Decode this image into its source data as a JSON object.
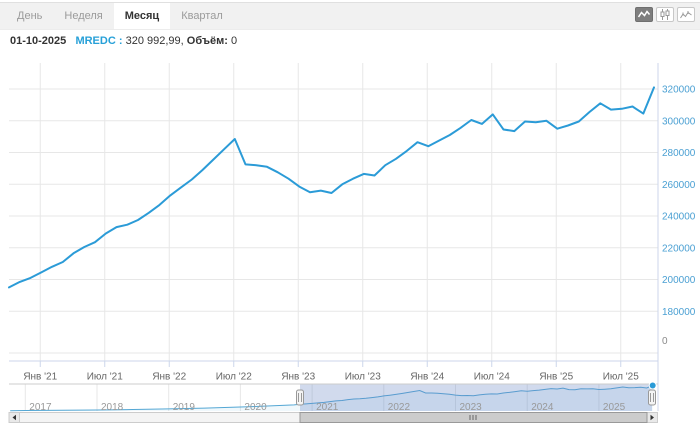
{
  "tabs": {
    "items": [
      {
        "label": "День",
        "active": false
      },
      {
        "label": "Неделя",
        "active": false
      },
      {
        "label": "Месяц",
        "active": true
      },
      {
        "label": "Квартал",
        "active": false
      }
    ]
  },
  "legend": {
    "date": "01-10-2025",
    "series": "MREDC",
    "sep": " : ",
    "price": "320 992,99,",
    "volume_label": "Объём:",
    "volume": "0"
  },
  "chart_type_buttons": [
    {
      "name": "line-chart",
      "active": true
    },
    {
      "name": "candlestick-chart",
      "active": false
    },
    {
      "name": "ohlc-chart",
      "active": false
    }
  ],
  "colors": {
    "line": "#2b9bd7",
    "nav_line": "#54a7d4",
    "nav_fill": "rgba(43,155,215,0.07)",
    "nav_mask": "rgba(102,133,194,0.3)",
    "grid": "#e7e7e7",
    "axis": "#ccd6eb",
    "y_label": "#4ba0d3",
    "x_label": "#666666",
    "year_label": "#999999"
  },
  "chart_data": {
    "type": "line",
    "series_name": "MREDC",
    "x": [
      "2020-10",
      "2020-11",
      "2020-12",
      "2021-01",
      "2021-02",
      "2021-03",
      "2021-04",
      "2021-05",
      "2021-06",
      "2021-07",
      "2021-08",
      "2021-09",
      "2021-10",
      "2021-11",
      "2021-12",
      "2022-01",
      "2022-02",
      "2022-03",
      "2022-04",
      "2022-05",
      "2022-06",
      "2022-07",
      "2022-08",
      "2022-09",
      "2022-10",
      "2022-11",
      "2022-12",
      "2023-01",
      "2023-02",
      "2023-03",
      "2023-04",
      "2023-05",
      "2023-06",
      "2023-07",
      "2023-08",
      "2023-09",
      "2023-10",
      "2023-11",
      "2023-12",
      "2024-01",
      "2024-02",
      "2024-03",
      "2024-04",
      "2024-05",
      "2024-06",
      "2024-07",
      "2024-08",
      "2024-09",
      "2024-10",
      "2024-11",
      "2024-12",
      "2025-01",
      "2025-02",
      "2025-03",
      "2025-04",
      "2025-05",
      "2025-06",
      "2025-07",
      "2025-08",
      "2025-09",
      "2025-10"
    ],
    "values": [
      195000,
      198500,
      201000,
      204500,
      208000,
      211000,
      216500,
      220500,
      223500,
      229000,
      233000,
      234500,
      237500,
      242000,
      247000,
      253000,
      258000,
      263000,
      269000,
      275500,
      282000,
      288500,
      272500,
      272000,
      271000,
      267500,
      263500,
      258500,
      255000,
      256000,
      254500,
      260000,
      263500,
      266500,
      265500,
      272000,
      276000,
      281000,
      286500,
      284000,
      287500,
      291000,
      295500,
      300500,
      298000,
      304000,
      294500,
      293500,
      299500,
      299000,
      300000,
      295000,
      297000,
      299500,
      305500,
      311000,
      307000,
      307500,
      309000,
      304500,
      320993
    ],
    "last_value": 320992.99,
    "yticks": [
      320000,
      300000,
      280000,
      260000,
      240000,
      220000,
      200000,
      180000
    ],
    "volume_axis_label": "0",
    "xtick_labels": [
      "Янв '21",
      "Июл '21",
      "Янв '22",
      "Июл '22",
      "Янв '23",
      "Июл '23",
      "Янв '24",
      "Июл '24",
      "Янв '25",
      "Июл '25"
    ],
    "ylim": [
      175000,
      328000
    ],
    "grid": true,
    "legend_position": "top-left"
  },
  "navigator": {
    "year_labels": [
      "2017",
      "2018",
      "2019",
      "2020",
      "2021",
      "2022",
      "2023",
      "2024",
      "2025"
    ],
    "prefix_points": [
      [
        2016.79,
        157000
      ],
      [
        2017.0,
        158000
      ],
      [
        2017.5,
        159500
      ],
      [
        2018.0,
        161500
      ],
      [
        2018.5,
        164500
      ],
      [
        2019.0,
        168500
      ],
      [
        2019.5,
        174000
      ],
      [
        2020.0,
        181000
      ],
      [
        2020.25,
        185000
      ],
      [
        2020.5,
        190000
      ]
    ],
    "selection": {
      "from": "2020-10",
      "to": "2025-10"
    }
  }
}
